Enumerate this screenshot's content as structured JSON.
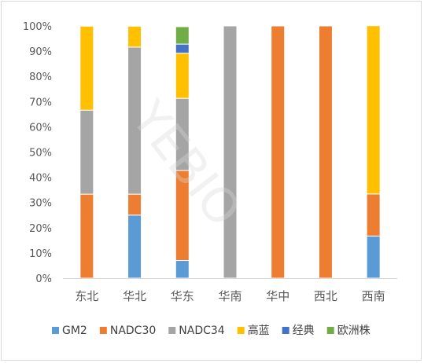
{
  "chart_data": {
    "type": "bar",
    "stacked": true,
    "categories": [
      "东北",
      "华北",
      "华东",
      "华南",
      "华中",
      "西北",
      "西南"
    ],
    "series": [
      {
        "name": "GM2",
        "color": "#5b9bd5",
        "values": [
          0,
          25,
          7,
          0,
          0,
          0,
          16.7
        ]
      },
      {
        "name": "NADC30",
        "color": "#ed7d31",
        "values": [
          33.3,
          8.3,
          35.7,
          0,
          100,
          100,
          16.7
        ]
      },
      {
        "name": "NADC34",
        "color": "#a5a5a5",
        "values": [
          33.3,
          58.3,
          28.6,
          100,
          0,
          0,
          0
        ]
      },
      {
        "name": "高蓝",
        "color": "#ffc000",
        "values": [
          33.3,
          8.3,
          17.9,
          0,
          0,
          0,
          66.7
        ]
      },
      {
        "name": "经典",
        "color": "#4472c4",
        "values": [
          0,
          0,
          3.6,
          0,
          0,
          0,
          0
        ]
      },
      {
        "name": "欧洲株",
        "color": "#70ad47",
        "values": [
          0,
          0,
          6.9,
          0,
          0,
          0,
          0
        ]
      }
    ],
    "y_ticks": [
      "0%",
      "10%",
      "20%",
      "30%",
      "40%",
      "50%",
      "60%",
      "70%",
      "80%",
      "90%",
      "100%"
    ],
    "ylim": [
      0,
      100
    ],
    "grid": false,
    "legend_position": "bottom",
    "watermark": "YEBIO"
  }
}
